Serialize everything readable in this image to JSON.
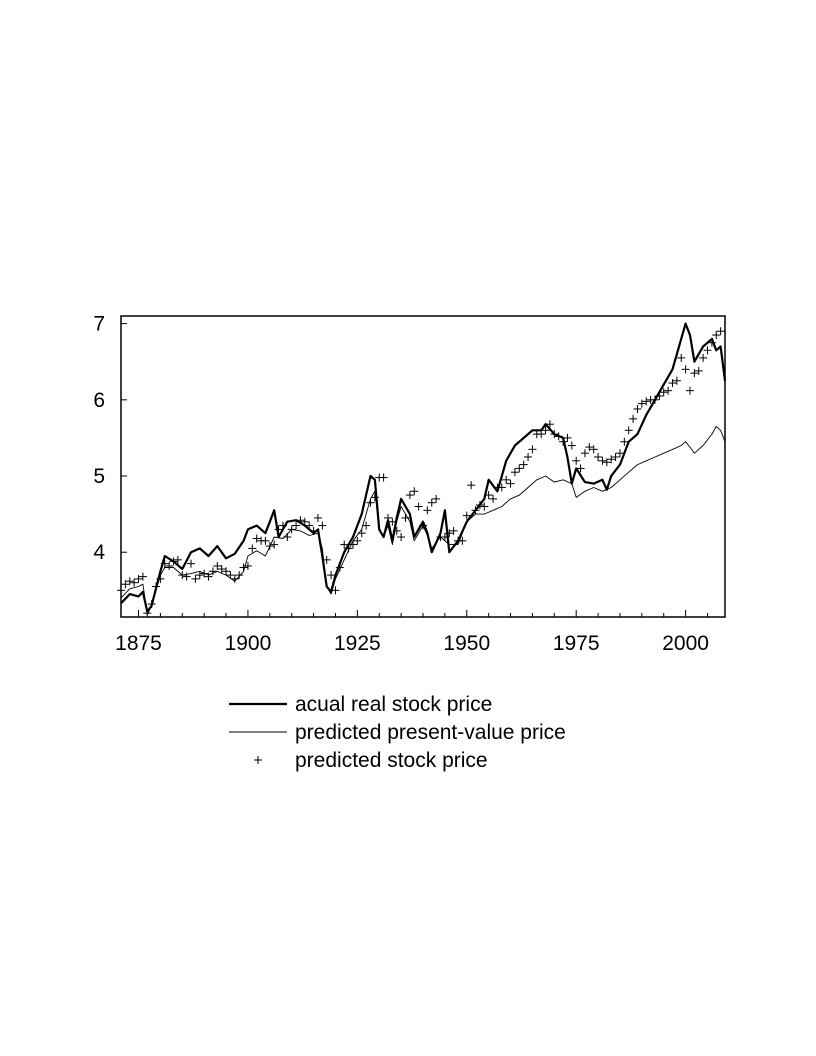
{
  "chart_data": {
    "type": "line",
    "title": "",
    "xlabel": "",
    "ylabel": "",
    "xlim": [
      1871,
      2009
    ],
    "ylim": [
      3.15,
      7.1
    ],
    "x_ticks": [
      1875,
      1900,
      1925,
      1950,
      1975,
      2000
    ],
    "x_tick_labels": [
      "1875",
      "1900",
      "1925",
      "1950",
      "1975",
      "2000"
    ],
    "y_ticks": [
      4,
      5,
      6,
      7
    ],
    "y_tick_labels": [
      "4",
      "5",
      "6",
      "7"
    ],
    "grid": false,
    "legend_position": "bottom",
    "series": [
      {
        "name": "acual real stock price",
        "style": "thick-line",
        "color": "#000000",
        "x": [
          1871,
          1873,
          1875,
          1876,
          1877,
          1878,
          1880,
          1881,
          1883,
          1885,
          1887,
          1889,
          1891,
          1893,
          1895,
          1897,
          1899,
          1900,
          1902,
          1904,
          1906,
          1907,
          1909,
          1911,
          1913,
          1915,
          1916,
          1917,
          1918,
          1919,
          1920,
          1922,
          1924,
          1926,
          1928,
          1929,
          1930,
          1931,
          1932,
          1933,
          1934,
          1935,
          1937,
          1938,
          1940,
          1941,
          1942,
          1944,
          1945,
          1946,
          1948,
          1950,
          1952,
          1954,
          1955,
          1957,
          1959,
          1961,
          1963,
          1965,
          1967,
          1968,
          1970,
          1972,
          1973,
          1974,
          1975,
          1977,
          1979,
          1981,
          1982,
          1983,
          1985,
          1987,
          1989,
          1991,
          1993,
          1995,
          1997,
          1999,
          2000,
          2001,
          2002,
          2003,
          2004,
          2006,
          2007,
          2008,
          2009
        ],
        "y": [
          3.33,
          3.45,
          3.42,
          3.48,
          3.22,
          3.3,
          3.75,
          3.95,
          3.88,
          3.78,
          4.0,
          4.05,
          3.95,
          4.08,
          3.92,
          3.98,
          4.15,
          4.3,
          4.35,
          4.25,
          4.55,
          4.2,
          4.4,
          4.42,
          4.35,
          4.25,
          4.3,
          3.95,
          3.55,
          3.48,
          3.7,
          4.0,
          4.2,
          4.5,
          5.0,
          4.95,
          4.3,
          4.2,
          4.42,
          4.15,
          4.45,
          4.7,
          4.5,
          4.2,
          4.4,
          4.25,
          4.0,
          4.25,
          4.55,
          4.0,
          4.15,
          4.4,
          4.55,
          4.7,
          4.95,
          4.8,
          5.2,
          5.4,
          5.5,
          5.6,
          5.6,
          5.68,
          5.55,
          5.5,
          5.25,
          4.9,
          5.1,
          4.92,
          4.9,
          4.95,
          4.82,
          5.0,
          5.15,
          5.45,
          5.55,
          5.8,
          6.0,
          6.2,
          6.4,
          6.8,
          7.0,
          6.85,
          6.5,
          6.6,
          6.7,
          6.8,
          6.65,
          6.7,
          6.25
        ]
      },
      {
        "name": "predicted present-value price",
        "style": "thin-line",
        "color": "#000000",
        "x": [
          1871,
          1873,
          1875,
          1876,
          1877,
          1878,
          1880,
          1881,
          1883,
          1885,
          1887,
          1889,
          1891,
          1893,
          1895,
          1897,
          1899,
          1900,
          1902,
          1904,
          1906,
          1908,
          1910,
          1912,
          1914,
          1916,
          1917,
          1918,
          1919,
          1920,
          1922,
          1924,
          1926,
          1928,
          1929,
          1930,
          1931,
          1932,
          1933,
          1934,
          1935,
          1937,
          1938,
          1940,
          1941,
          1942,
          1944,
          1946,
          1948,
          1950,
          1952,
          1954,
          1956,
          1958,
          1960,
          1962,
          1964,
          1966,
          1968,
          1970,
          1972,
          1974,
          1975,
          1977,
          1979,
          1981,
          1983,
          1985,
          1987,
          1989,
          1991,
          1993,
          1995,
          1997,
          1999,
          2000,
          2001,
          2002,
          2004,
          2006,
          2007,
          2008,
          2009
        ],
        "y": [
          3.4,
          3.52,
          3.55,
          3.58,
          3.18,
          3.3,
          3.7,
          3.8,
          3.8,
          3.7,
          3.72,
          3.75,
          3.7,
          3.75,
          3.7,
          3.62,
          3.75,
          3.95,
          4.02,
          3.95,
          4.2,
          4.18,
          4.3,
          4.28,
          4.22,
          4.25,
          4.05,
          3.55,
          3.45,
          3.65,
          3.9,
          4.15,
          4.3,
          4.7,
          4.8,
          4.3,
          4.2,
          4.35,
          4.1,
          4.4,
          4.6,
          4.4,
          4.15,
          4.35,
          4.22,
          4.05,
          4.2,
          4.1,
          4.1,
          4.4,
          4.5,
          4.5,
          4.55,
          4.6,
          4.7,
          4.75,
          4.85,
          4.95,
          5.0,
          4.92,
          4.95,
          4.9,
          4.72,
          4.8,
          4.85,
          4.8,
          4.85,
          4.95,
          5.05,
          5.15,
          5.2,
          5.25,
          5.3,
          5.35,
          5.4,
          5.45,
          5.38,
          5.3,
          5.4,
          5.55,
          5.65,
          5.6,
          5.45
        ]
      },
      {
        "name": "predicted stock price",
        "style": "plus-markers",
        "color": "#000000",
        "x": [
          1871,
          1872,
          1873,
          1874,
          1875,
          1876,
          1877,
          1878,
          1879,
          1880,
          1881,
          1882,
          1883,
          1884,
          1885,
          1886,
          1887,
          1888,
          1889,
          1890,
          1891,
          1892,
          1893,
          1894,
          1895,
          1896,
          1897,
          1898,
          1899,
          1900,
          1901,
          1902,
          1903,
          1904,
          1905,
          1906,
          1907,
          1908,
          1909,
          1910,
          1911,
          1912,
          1913,
          1914,
          1915,
          1916,
          1917,
          1918,
          1919,
          1920,
          1921,
          1922,
          1923,
          1924,
          1925,
          1926,
          1927,
          1928,
          1929,
          1930,
          1931,
          1932,
          1933,
          1934,
          1935,
          1936,
          1937,
          1938,
          1939,
          1940,
          1941,
          1942,
          1943,
          1944,
          1945,
          1946,
          1947,
          1948,
          1949,
          1950,
          1951,
          1952,
          1953,
          1954,
          1955,
          1956,
          1957,
          1958,
          1959,
          1960,
          1961,
          1962,
          1963,
          1964,
          1965,
          1966,
          1967,
          1968,
          1969,
          1970,
          1971,
          1972,
          1973,
          1974,
          1975,
          1976,
          1977,
          1978,
          1979,
          1980,
          1981,
          1982,
          1983,
          1984,
          1985,
          1986,
          1987,
          1988,
          1989,
          1990,
          1991,
          1992,
          1993,
          1994,
          1995,
          1996,
          1997,
          1998,
          1999,
          2000,
          2001,
          2002,
          2003,
          2004,
          2005,
          2006,
          2007,
          2008
        ],
        "y": [
          3.5,
          3.58,
          3.62,
          3.6,
          3.65,
          3.68,
          3.2,
          3.32,
          3.55,
          3.65,
          3.85,
          3.82,
          3.88,
          3.9,
          3.7,
          3.68,
          3.85,
          3.65,
          3.7,
          3.72,
          3.68,
          3.75,
          3.82,
          3.78,
          3.75,
          3.7,
          3.65,
          3.7,
          3.8,
          3.82,
          4.05,
          4.18,
          4.15,
          4.15,
          4.08,
          4.1,
          4.3,
          4.35,
          4.2,
          4.3,
          4.35,
          4.42,
          4.4,
          4.35,
          4.28,
          4.45,
          4.35,
          3.9,
          3.7,
          3.5,
          3.8,
          4.1,
          4.05,
          4.1,
          4.15,
          4.25,
          4.35,
          4.65,
          4.72,
          4.98,
          4.98,
          4.45,
          4.4,
          4.28,
          4.2,
          4.45,
          4.75,
          4.8,
          4.6,
          4.35,
          4.55,
          4.65,
          4.7,
          4.2,
          4.2,
          4.25,
          4.28,
          4.15,
          4.15,
          4.48,
          4.88,
          4.55,
          4.62,
          4.6,
          4.75,
          4.7,
          4.85,
          4.85,
          4.95,
          4.9,
          5.05,
          5.1,
          5.15,
          5.25,
          5.35,
          5.55,
          5.55,
          5.6,
          5.68,
          5.55,
          5.52,
          5.45,
          5.5,
          5.4,
          5.2,
          5.1,
          5.3,
          5.38,
          5.35,
          5.25,
          5.2,
          5.18,
          5.22,
          5.25,
          5.3,
          5.45,
          5.6,
          5.75,
          5.88,
          5.95,
          5.98,
          6.0,
          6.0,
          6.05,
          6.1,
          6.12,
          6.22,
          6.25,
          6.55,
          6.4,
          6.12,
          6.35,
          6.38,
          6.55,
          6.65,
          6.75,
          6.85,
          6.9
        ]
      }
    ]
  }
}
